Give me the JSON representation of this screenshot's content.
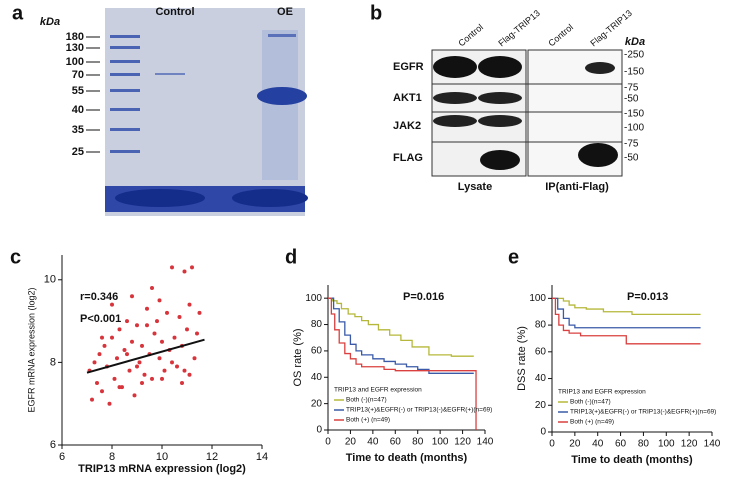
{
  "gel": {
    "label": "a",
    "unit": "kDa",
    "lanes": [
      "Control",
      "OE"
    ],
    "markers": [
      180,
      130,
      100,
      70,
      55,
      40,
      35,
      25
    ]
  },
  "blot": {
    "label": "b",
    "unit": "kDa",
    "columns": [
      "Control",
      "Flag-TRIP13",
      "Control",
      "Flag-TRIP13"
    ],
    "rows": [
      "EGFR",
      "AKT1",
      "JAK2",
      "FLAG"
    ],
    "markers": [
      "-250",
      "-150",
      "-75",
      "-50",
      "-150",
      "-100",
      "-75",
      "-50"
    ],
    "groups": [
      "Lysate",
      "IP(anti-Flag)"
    ]
  },
  "chart_data": [
    {
      "type": "scatter",
      "label": "c",
      "annotations": [
        "r=0.346",
        "P<0.001"
      ],
      "x_label": "TRIP13 mRNA expression (log2)",
      "y_label": "EGFR mRNA expression (log2)",
      "xlim": [
        6,
        14
      ],
      "ylim": [
        6,
        10.6
      ],
      "xticks": [
        6,
        8,
        10,
        12,
        14
      ],
      "yticks": [
        6,
        8,
        10
      ],
      "color": "#d8343c",
      "x": [
        7.1,
        7.2,
        7.3,
        7.4,
        7.5,
        7.6,
        7.7,
        7.8,
        7.9,
        8.0,
        8.1,
        8.2,
        8.3,
        8.4,
        8.5,
        8.6,
        8.7,
        8.8,
        8.9,
        9.0,
        9.1,
        9.2,
        9.3,
        9.4,
        9.5,
        9.6,
        9.7,
        9.8,
        9.9,
        10.0,
        10.1,
        10.2,
        10.3,
        10.4,
        10.5,
        10.6,
        10.7,
        10.8,
        10.9,
        11.0,
        11.1,
        11.2,
        11.3,
        11.4,
        11.5,
        7.6,
        8.3,
        8.8,
        9.2,
        9.6,
        10.0,
        10.4,
        10.8,
        11.1,
        8.0,
        9.0,
        9.9,
        10.9,
        8.6,
        9.4
      ],
      "values": [
        7.8,
        7.1,
        8.0,
        7.5,
        8.2,
        7.3,
        8.4,
        7.9,
        7.0,
        8.6,
        7.6,
        8.1,
        8.8,
        7.4,
        8.3,
        9.0,
        7.8,
        8.5,
        7.2,
        8.9,
        8.0,
        8.4,
        7.7,
        9.3,
        8.2,
        7.6,
        8.7,
        9.0,
        8.1,
        8.5,
        7.8,
        9.2,
        8.3,
        10.3,
        8.6,
        7.9,
        9.1,
        8.4,
        10.2,
        8.8,
        9.4,
        10.3,
        8.1,
        8.7,
        9.2,
        8.6,
        7.4,
        9.6,
        7.5,
        9.8,
        7.6,
        8.0,
        7.5,
        7.7,
        9.4,
        7.9,
        9.5,
        7.8,
        8.2,
        8.9
      ],
      "trend": {
        "x": [
          7,
          11.7
        ],
        "y": [
          7.75,
          8.55
        ]
      }
    },
    {
      "type": "line",
      "step": true,
      "label": "d",
      "annotations": [
        "P=0.016"
      ],
      "x_label": "Time to death (months)",
      "y_label": "OS rate (%)",
      "xlim": [
        0,
        140
      ],
      "ylim": [
        0,
        110
      ],
      "xticks": [
        0,
        20,
        40,
        60,
        80,
        100,
        120,
        140
      ],
      "yticks": [
        0,
        20,
        40,
        60,
        80,
        100
      ],
      "legend_title": "TRIP13 and EGFR expression",
      "series": [
        {
          "name": "Both (-)(n=47)",
          "color": "#b5b83a",
          "x": [
            0,
            4,
            8,
            12,
            18,
            24,
            30,
            36,
            45,
            55,
            65,
            75,
            90,
            100,
            110,
            130
          ],
          "values": [
            100,
            98,
            96,
            92,
            88,
            86,
            83,
            80,
            76,
            72,
            68,
            63,
            57,
            57,
            56,
            56
          ]
        },
        {
          "name": "TRIP13(+)&EGFR(-) or TRIP13(-)&EGFR(+)(n=69)",
          "color": "#3a5aa8",
          "x": [
            0,
            5,
            10,
            15,
            20,
            25,
            30,
            40,
            50,
            60,
            70,
            80,
            90,
            100,
            130
          ],
          "values": [
            100,
            92,
            82,
            72,
            65,
            60,
            57,
            54,
            52,
            50,
            48,
            46,
            43,
            43,
            43
          ]
        },
        {
          "name": "Both (+) (n=49)",
          "color": "#d9403f",
          "x": [
            0,
            3,
            6,
            10,
            15,
            20,
            25,
            30,
            40,
            50,
            60,
            70,
            80,
            130,
            132
          ],
          "values": [
            100,
            88,
            76,
            66,
            58,
            54,
            50,
            48,
            48,
            46,
            45,
            45,
            45,
            45,
            0
          ]
        }
      ]
    },
    {
      "type": "line",
      "step": true,
      "label": "e",
      "annotations": [
        "P=0.013"
      ],
      "x_label": "Time to death (months)",
      "y_label": "DSS rate (%)",
      "xlim": [
        0,
        140
      ],
      "ylim": [
        0,
        110
      ],
      "xticks": [
        0,
        20,
        40,
        60,
        80,
        100,
        120,
        140
      ],
      "yticks": [
        0,
        20,
        40,
        60,
        80,
        100
      ],
      "legend_title": "TRIP13 and EGFR expression",
      "series": [
        {
          "name": "Both (-)(n=47)",
          "color": "#b5b83a",
          "x": [
            0,
            10,
            15,
            20,
            30,
            45,
            60,
            70,
            130
          ],
          "values": [
            100,
            98,
            95,
            93,
            92,
            90,
            90,
            88,
            88
          ]
        },
        {
          "name": "TRIP13(+)&EGFR(-) or TRIP13(-)&EGFR(+)(n=69)",
          "color": "#3a5aa8",
          "x": [
            0,
            5,
            10,
            15,
            20,
            30,
            130
          ],
          "values": [
            100,
            92,
            85,
            80,
            78,
            78,
            78
          ]
        },
        {
          "name": "Both (+) (n=49)",
          "color": "#d9403f",
          "x": [
            0,
            3,
            6,
            10,
            15,
            25,
            40,
            65,
            130
          ],
          "values": [
            100,
            88,
            80,
            76,
            74,
            72,
            72,
            66,
            66
          ]
        }
      ]
    }
  ]
}
